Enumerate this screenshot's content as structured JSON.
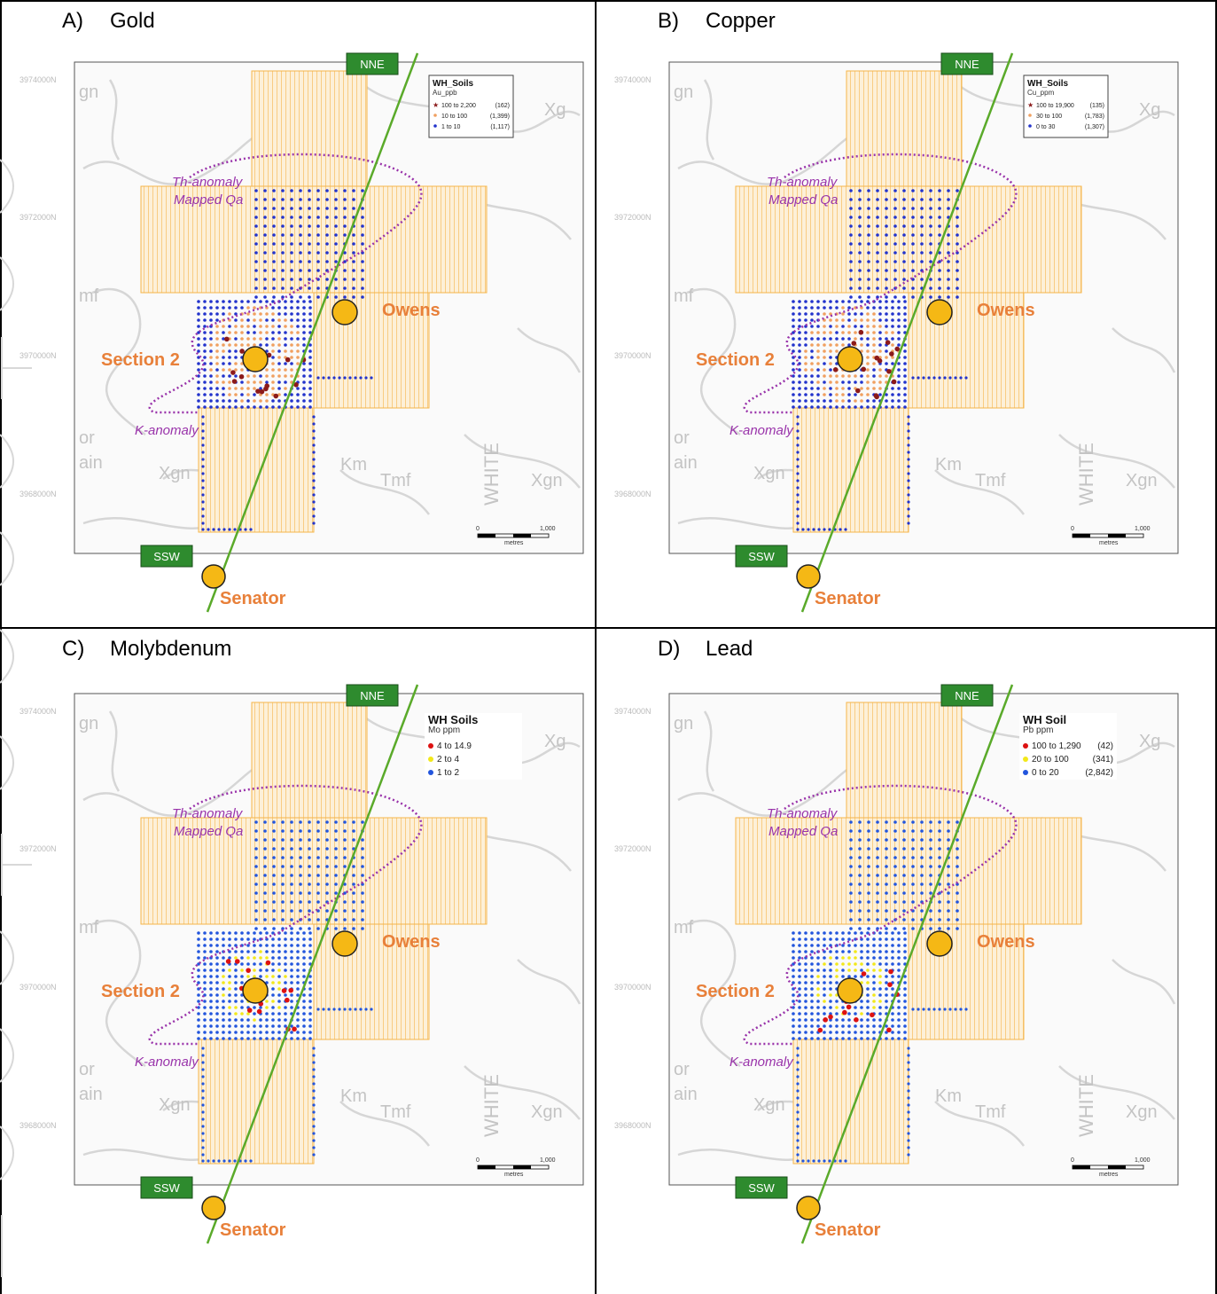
{
  "panels": [
    {
      "id": "A",
      "letter": "A)",
      "title": "Gold",
      "legend": {
        "title": "WH_Soils",
        "subtitle": "Au_ppb",
        "style": "small",
        "rows": [
          {
            "range": "100  to  2,200",
            "count": "(162)",
            "color": "#8b1a1a",
            "symbol": "star"
          },
          {
            "range": "10  to    100",
            "count": "(1,399)",
            "color": "#f0a060",
            "symbol": "dot"
          },
          {
            "range": "1  to     10",
            "count": "(1,117)",
            "color": "#2233cc",
            "symbol": "dot"
          }
        ]
      }
    },
    {
      "id": "B",
      "letter": "B)",
      "title": "Copper",
      "legend": {
        "title": "WH_Soils",
        "subtitle": "Cu_ppm",
        "style": "small",
        "rows": [
          {
            "range": "100  to  19,900",
            "count": "(135)",
            "color": "#8b1a1a",
            "symbol": "star"
          },
          {
            "range": "30  to     100",
            "count": "(1,783)",
            "color": "#f0a060",
            "symbol": "dot"
          },
          {
            "range": "0  to      30",
            "count": "(1,307)",
            "color": "#2233cc",
            "symbol": "dot"
          }
        ]
      }
    },
    {
      "id": "C",
      "letter": "C)",
      "title": "Molybdenum",
      "legend": {
        "title": "WH Soils",
        "subtitle": "Mo ppm",
        "style": "large",
        "rows": [
          {
            "range": "4  to  14.9",
            "count": "",
            "color": "#dd1111",
            "symbol": "dot"
          },
          {
            "range": "2  to    4",
            "count": "",
            "color": "#f2e81a",
            "symbol": "dot"
          },
          {
            "range": "1  to    2",
            "count": "",
            "color": "#2255dd",
            "symbol": "dot"
          }
        ]
      }
    },
    {
      "id": "D",
      "letter": "D)",
      "title": "Lead",
      "legend": {
        "title": "WH Soil",
        "subtitle": "Pb ppm",
        "style": "large",
        "rows": [
          {
            "range": "100  to  1,290",
            "count": "(42)",
            "color": "#dd1111",
            "symbol": "dot"
          },
          {
            "range": "20  to     100",
            "count": "(341)",
            "color": "#f2e81a",
            "symbol": "dot"
          },
          {
            "range": "0  to      20",
            "count": "(2,842)",
            "color": "#2255dd",
            "symbol": "dot"
          }
        ]
      }
    }
  ],
  "map_labels": {
    "nne": "NNE",
    "ssw": "SSW",
    "owens": "Owens",
    "section2": "Section 2",
    "senator": "Senator",
    "th_anomaly": "Th-anomaly",
    "mapped_qa": "Mapped Qa",
    "k_anomaly": "K-anomaly",
    "northing_1": "3974000N",
    "northing_2": "3972000N",
    "northing_3": "3970000N",
    "northing_4": "3968000N",
    "geo_gn": "gn",
    "geo_mf": "mf",
    "geo_or": "or",
    "geo_ain": "ain",
    "geo_xgn1": "Xgn",
    "geo_km": "Km",
    "geo_tmf": "Tmf",
    "geo_xgn2": "Xgn",
    "geo_xg": "Xg",
    "geo_white": "WHITE",
    "scale_0": "0",
    "scale_1000": "1,000",
    "scale_unit": "metres"
  },
  "colors": {
    "claim_fill": "#fdf0d8",
    "claim_stroke": "#f5b54a",
    "section_line": "#5aaa2a",
    "label_box": "#2e8b2e",
    "target_fill": "#f5b815",
    "target_label": "#e8803a",
    "anomaly": "#9933aa",
    "topo": "#d6d6d6"
  }
}
